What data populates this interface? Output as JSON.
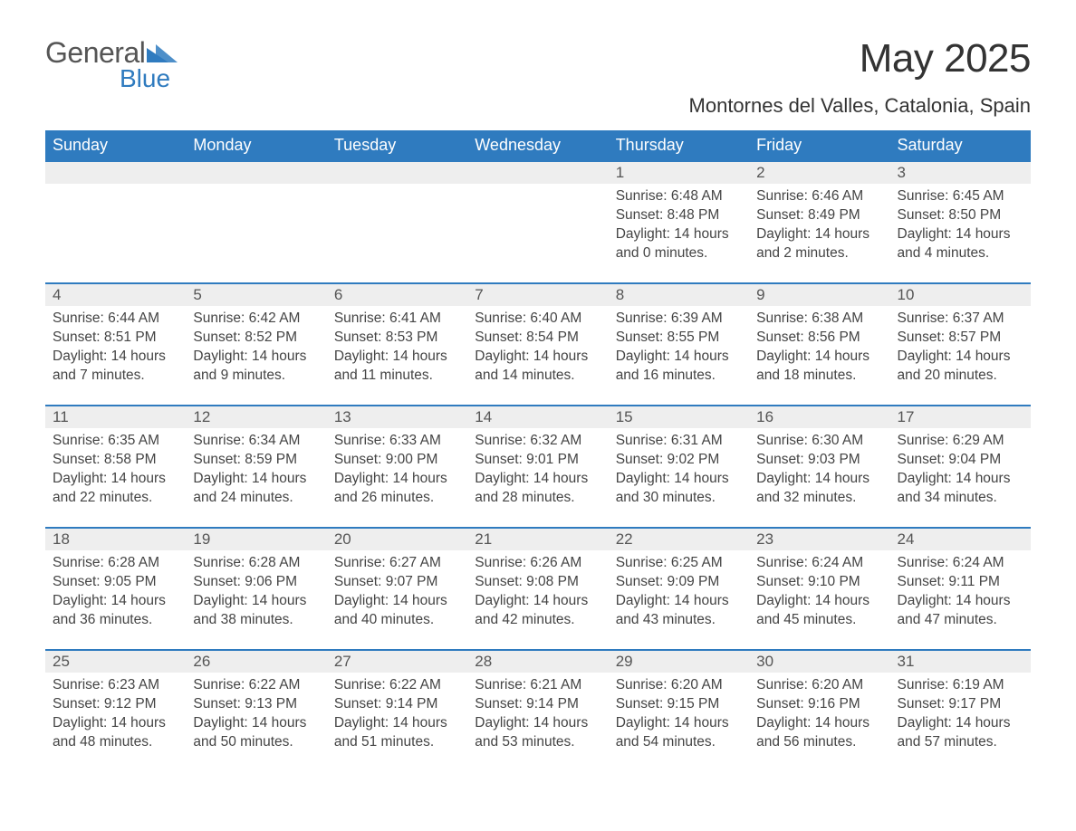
{
  "logo": {
    "text_general": "General",
    "text_blue": "Blue",
    "triangle_color": "#2f7bbf"
  },
  "title": "May 2025",
  "location": "Montornes del Valles, Catalonia, Spain",
  "colors": {
    "header_bg": "#2f7bbf",
    "header_text": "#ffffff",
    "daynum_bg": "#eeeeee",
    "border_top": "#2f7bbf",
    "body_text": "#444444",
    "title_text": "#333333"
  },
  "fonts": {
    "title_size_pt": 33,
    "location_size_pt": 17,
    "header_size_pt": 14,
    "cell_size_pt": 12
  },
  "weekdays": [
    "Sunday",
    "Monday",
    "Tuesday",
    "Wednesday",
    "Thursday",
    "Friday",
    "Saturday"
  ],
  "weeks": [
    [
      null,
      null,
      null,
      null,
      {
        "day": "1",
        "sunrise": "Sunrise: 6:48 AM",
        "sunset": "Sunset: 8:48 PM",
        "daylight": "Daylight: 14 hours and 0 minutes."
      },
      {
        "day": "2",
        "sunrise": "Sunrise: 6:46 AM",
        "sunset": "Sunset: 8:49 PM",
        "daylight": "Daylight: 14 hours and 2 minutes."
      },
      {
        "day": "3",
        "sunrise": "Sunrise: 6:45 AM",
        "sunset": "Sunset: 8:50 PM",
        "daylight": "Daylight: 14 hours and 4 minutes."
      }
    ],
    [
      {
        "day": "4",
        "sunrise": "Sunrise: 6:44 AM",
        "sunset": "Sunset: 8:51 PM",
        "daylight": "Daylight: 14 hours and 7 minutes."
      },
      {
        "day": "5",
        "sunrise": "Sunrise: 6:42 AM",
        "sunset": "Sunset: 8:52 PM",
        "daylight": "Daylight: 14 hours and 9 minutes."
      },
      {
        "day": "6",
        "sunrise": "Sunrise: 6:41 AM",
        "sunset": "Sunset: 8:53 PM",
        "daylight": "Daylight: 14 hours and 11 minutes."
      },
      {
        "day": "7",
        "sunrise": "Sunrise: 6:40 AM",
        "sunset": "Sunset: 8:54 PM",
        "daylight": "Daylight: 14 hours and 14 minutes."
      },
      {
        "day": "8",
        "sunrise": "Sunrise: 6:39 AM",
        "sunset": "Sunset: 8:55 PM",
        "daylight": "Daylight: 14 hours and 16 minutes."
      },
      {
        "day": "9",
        "sunrise": "Sunrise: 6:38 AM",
        "sunset": "Sunset: 8:56 PM",
        "daylight": "Daylight: 14 hours and 18 minutes."
      },
      {
        "day": "10",
        "sunrise": "Sunrise: 6:37 AM",
        "sunset": "Sunset: 8:57 PM",
        "daylight": "Daylight: 14 hours and 20 minutes."
      }
    ],
    [
      {
        "day": "11",
        "sunrise": "Sunrise: 6:35 AM",
        "sunset": "Sunset: 8:58 PM",
        "daylight": "Daylight: 14 hours and 22 minutes."
      },
      {
        "day": "12",
        "sunrise": "Sunrise: 6:34 AM",
        "sunset": "Sunset: 8:59 PM",
        "daylight": "Daylight: 14 hours and 24 minutes."
      },
      {
        "day": "13",
        "sunrise": "Sunrise: 6:33 AM",
        "sunset": "Sunset: 9:00 PM",
        "daylight": "Daylight: 14 hours and 26 minutes."
      },
      {
        "day": "14",
        "sunrise": "Sunrise: 6:32 AM",
        "sunset": "Sunset: 9:01 PM",
        "daylight": "Daylight: 14 hours and 28 minutes."
      },
      {
        "day": "15",
        "sunrise": "Sunrise: 6:31 AM",
        "sunset": "Sunset: 9:02 PM",
        "daylight": "Daylight: 14 hours and 30 minutes."
      },
      {
        "day": "16",
        "sunrise": "Sunrise: 6:30 AM",
        "sunset": "Sunset: 9:03 PM",
        "daylight": "Daylight: 14 hours and 32 minutes."
      },
      {
        "day": "17",
        "sunrise": "Sunrise: 6:29 AM",
        "sunset": "Sunset: 9:04 PM",
        "daylight": "Daylight: 14 hours and 34 minutes."
      }
    ],
    [
      {
        "day": "18",
        "sunrise": "Sunrise: 6:28 AM",
        "sunset": "Sunset: 9:05 PM",
        "daylight": "Daylight: 14 hours and 36 minutes."
      },
      {
        "day": "19",
        "sunrise": "Sunrise: 6:28 AM",
        "sunset": "Sunset: 9:06 PM",
        "daylight": "Daylight: 14 hours and 38 minutes."
      },
      {
        "day": "20",
        "sunrise": "Sunrise: 6:27 AM",
        "sunset": "Sunset: 9:07 PM",
        "daylight": "Daylight: 14 hours and 40 minutes."
      },
      {
        "day": "21",
        "sunrise": "Sunrise: 6:26 AM",
        "sunset": "Sunset: 9:08 PM",
        "daylight": "Daylight: 14 hours and 42 minutes."
      },
      {
        "day": "22",
        "sunrise": "Sunrise: 6:25 AM",
        "sunset": "Sunset: 9:09 PM",
        "daylight": "Daylight: 14 hours and 43 minutes."
      },
      {
        "day": "23",
        "sunrise": "Sunrise: 6:24 AM",
        "sunset": "Sunset: 9:10 PM",
        "daylight": "Daylight: 14 hours and 45 minutes."
      },
      {
        "day": "24",
        "sunrise": "Sunrise: 6:24 AM",
        "sunset": "Sunset: 9:11 PM",
        "daylight": "Daylight: 14 hours and 47 minutes."
      }
    ],
    [
      {
        "day": "25",
        "sunrise": "Sunrise: 6:23 AM",
        "sunset": "Sunset: 9:12 PM",
        "daylight": "Daylight: 14 hours and 48 minutes."
      },
      {
        "day": "26",
        "sunrise": "Sunrise: 6:22 AM",
        "sunset": "Sunset: 9:13 PM",
        "daylight": "Daylight: 14 hours and 50 minutes."
      },
      {
        "day": "27",
        "sunrise": "Sunrise: 6:22 AM",
        "sunset": "Sunset: 9:14 PM",
        "daylight": "Daylight: 14 hours and 51 minutes."
      },
      {
        "day": "28",
        "sunrise": "Sunrise: 6:21 AM",
        "sunset": "Sunset: 9:14 PM",
        "daylight": "Daylight: 14 hours and 53 minutes."
      },
      {
        "day": "29",
        "sunrise": "Sunrise: 6:20 AM",
        "sunset": "Sunset: 9:15 PM",
        "daylight": "Daylight: 14 hours and 54 minutes."
      },
      {
        "day": "30",
        "sunrise": "Sunrise: 6:20 AM",
        "sunset": "Sunset: 9:16 PM",
        "daylight": "Daylight: 14 hours and 56 minutes."
      },
      {
        "day": "31",
        "sunrise": "Sunrise: 6:19 AM",
        "sunset": "Sunset: 9:17 PM",
        "daylight": "Daylight: 14 hours and 57 minutes."
      }
    ]
  ]
}
